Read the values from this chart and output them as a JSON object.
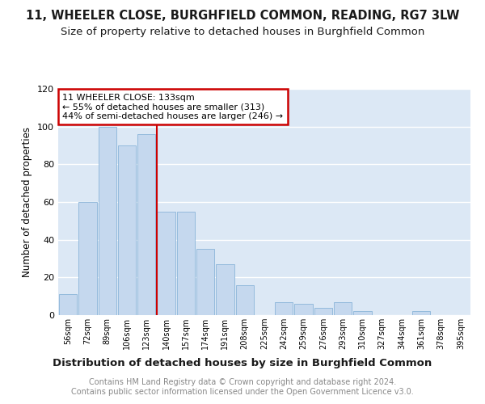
{
  "title1": "11, WHEELER CLOSE, BURGHFIELD COMMON, READING, RG7 3LW",
  "title2": "Size of property relative to detached houses in Burghfield Common",
  "xlabel": "Distribution of detached houses by size in Burghfield Common",
  "ylabel": "Number of detached properties",
  "categories": [
    "56sqm",
    "72sqm",
    "89sqm",
    "106sqm",
    "123sqm",
    "140sqm",
    "157sqm",
    "174sqm",
    "191sqm",
    "208sqm",
    "225sqm",
    "242sqm",
    "259sqm",
    "276sqm",
    "293sqm",
    "310sqm",
    "327sqm",
    "344sqm",
    "361sqm",
    "378sqm",
    "395sqm"
  ],
  "values": [
    11,
    60,
    100,
    90,
    96,
    55,
    55,
    35,
    27,
    16,
    0,
    7,
    6,
    4,
    7,
    2,
    0,
    0,
    2,
    0,
    0
  ],
  "bar_color": "#c5d8ee",
  "bar_edge_color": "#8ab4d8",
  "ref_line_index": 5,
  "ref_line_color": "#cc0000",
  "annotation_text": "11 WHEELER CLOSE: 133sqm\n← 55% of detached houses are smaller (313)\n44% of semi-detached houses are larger (246) →",
  "annotation_box_color": "#ffffff",
  "annotation_box_edge": "#cc0000",
  "ylim": [
    0,
    120
  ],
  "yticks": [
    0,
    20,
    40,
    60,
    80,
    100,
    120
  ],
  "bg_color": "#dce8f5",
  "footer_text": "Contains HM Land Registry data © Crown copyright and database right 2024.\nContains public sector information licensed under the Open Government Licence v3.0.",
  "title1_fontsize": 10.5,
  "title2_fontsize": 9.5,
  "xlabel_fontsize": 9.5,
  "ylabel_fontsize": 8.5,
  "footer_fontsize": 7,
  "ann_fontsize": 8
}
